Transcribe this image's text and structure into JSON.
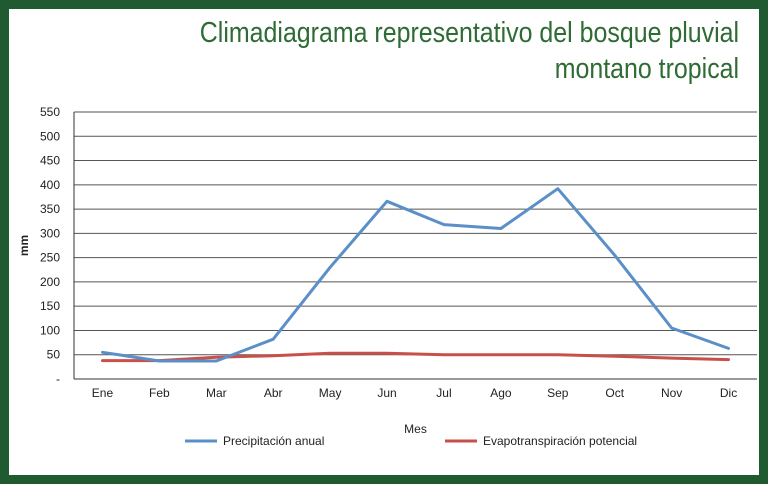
{
  "title_line1": "Climadiagrama representativo del bosque pluvial",
  "title_line2": "montano tropical",
  "colors": {
    "border": "#1f5a30",
    "title": "#2e6b35",
    "precip": "#5b8fc7",
    "evap": "#c9504a",
    "grid": "#555555"
  },
  "chart_data": {
    "type": "line",
    "xlabel": "Mes",
    "ylabel": "mm",
    "ylim": [
      0,
      550
    ],
    "y_ticks": [
      "-",
      "50",
      "100",
      "150",
      "200",
      "250",
      "300",
      "350",
      "400",
      "450",
      "500",
      "550"
    ],
    "categories": [
      "Ene",
      "Feb",
      "Mar",
      "Abr",
      "May",
      "Jun",
      "Jul",
      "Ago",
      "Sep",
      "Oct",
      "Nov",
      "Dic"
    ],
    "grid": true,
    "legend_position": "bottom",
    "series": [
      {
        "name": "Precipitación anual",
        "color": "#5b8fc7",
        "values": [
          55,
          37,
          37,
          82,
          230,
          366,
          318,
          310,
          392,
          255,
          105,
          63
        ]
      },
      {
        "name": "Evapotranspiración potencial",
        "color": "#c9504a",
        "values": [
          38,
          38,
          45,
          48,
          53,
          53,
          50,
          50,
          50,
          47,
          43,
          40
        ]
      }
    ]
  }
}
